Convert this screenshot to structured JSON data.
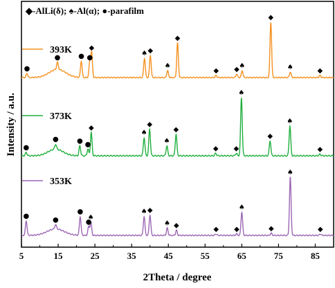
{
  "chart_data": {
    "type": "line",
    "title": "",
    "xlabel": "2Theta / degree",
    "ylabel": "Intensity / a.u.",
    "xlim": [
      5,
      90
    ],
    "xticks": [
      5,
      15,
      25,
      35,
      45,
      55,
      65,
      75,
      85
    ],
    "legend": {
      "position": "top",
      "items": [
        {
          "symbol": "◆",
          "text": "-AlLi(δ);"
        },
        {
          "symbol": "♠",
          "text": "-Al(α);"
        },
        {
          "symbol": "●",
          "text": "-parafilm"
        }
      ]
    },
    "series": [
      {
        "name": "393K",
        "color": "#f5901e",
        "baseline": 6.2,
        "broad": [
          {
            "x": 14.8,
            "h": 0.6,
            "w": 2.2
          }
        ],
        "peaks": [
          {
            "x": 6.5,
            "h": 0.3,
            "marker": "●"
          },
          {
            "x": 14.8,
            "h": 0.5,
            "marker": "●"
          },
          {
            "x": 21.3,
            "h": 1.2,
            "marker": "●"
          },
          {
            "x": 23.6,
            "h": 1.1,
            "marker": "●"
          },
          {
            "x": 24.1,
            "h": 1.8,
            "marker": "◆"
          },
          {
            "x": 38.5,
            "h": 1.4,
            "marker": "♠"
          },
          {
            "x": 40.1,
            "h": 1.6,
            "marker": "◆"
          },
          {
            "x": 44.8,
            "h": 0.5,
            "marker": "♠"
          },
          {
            "x": 47.5,
            "h": 2.5,
            "marker": "◆"
          },
          {
            "x": 58.0,
            "h": 0.15,
            "marker": "◆"
          },
          {
            "x": 63.6,
            "h": 0.25,
            "marker": "◆"
          },
          {
            "x": 65.1,
            "h": 0.5,
            "marker": "♠"
          },
          {
            "x": 72.9,
            "h": 4.0,
            "marker": "◆"
          },
          {
            "x": 78.2,
            "h": 0.4,
            "marker": "♠"
          },
          {
            "x": 86.3,
            "h": 0.15,
            "marker": "◆"
          }
        ]
      },
      {
        "name": "373K",
        "color": "#1fae3c",
        "baseline": 3.1,
        "broad": [
          {
            "x": 14.3,
            "h": 0.4,
            "w": 2.0
          }
        ],
        "peaks": [
          {
            "x": 6.3,
            "h": 0.2,
            "marker": "●"
          },
          {
            "x": 14.3,
            "h": 0.3,
            "marker": "●"
          },
          {
            "x": 20.9,
            "h": 0.6,
            "marker": "●"
          },
          {
            "x": 23.1,
            "h": 0.4,
            "marker": "●"
          },
          {
            "x": 24.0,
            "h": 1.4,
            "marker": "◆"
          },
          {
            "x": 38.4,
            "h": 1.1,
            "marker": "♠"
          },
          {
            "x": 39.9,
            "h": 1.6,
            "marker": "◆"
          },
          {
            "x": 44.6,
            "h": 0.6,
            "marker": "♠"
          },
          {
            "x": 47.1,
            "h": 1.3,
            "marker": "◆"
          },
          {
            "x": 57.9,
            "h": 0.15,
            "marker": "◆"
          },
          {
            "x": 63.5,
            "h": 0.15,
            "marker": "◆"
          },
          {
            "x": 64.9,
            "h": 3.5,
            "marker": "♠"
          },
          {
            "x": 72.7,
            "h": 0.9,
            "marker": "◆"
          },
          {
            "x": 78.1,
            "h": 1.8,
            "marker": "♠"
          },
          {
            "x": 86.3,
            "h": 0.1,
            "marker": "◆"
          }
        ]
      },
      {
        "name": "353K",
        "color": "#9b66b4",
        "baseline": 0,
        "broad": [
          {
            "x": 14.3,
            "h": 0.45,
            "w": 2.3
          }
        ],
        "peaks": [
          {
            "x": 6.3,
            "h": 1.0,
            "marker": "●"
          },
          {
            "x": 14.3,
            "h": 0.3,
            "marker": "●"
          },
          {
            "x": 21.0,
            "h": 1.3,
            "marker": "●"
          },
          {
            "x": 23.3,
            "h": 0.6,
            "marker": "●"
          },
          {
            "x": 23.9,
            "h": 0.9,
            "marker": "♠"
          },
          {
            "x": 38.4,
            "h": 1.3,
            "marker": "♠"
          },
          {
            "x": 40.0,
            "h": 1.4,
            "marker": "◆"
          },
          {
            "x": 44.7,
            "h": 0.5,
            "marker": "♠"
          },
          {
            "x": 47.2,
            "h": 0.35,
            "marker": "◆"
          },
          {
            "x": 58.0,
            "h": 0.1,
            "marker": "◆"
          },
          {
            "x": 63.6,
            "h": 0.1,
            "marker": "◆"
          },
          {
            "x": 65.0,
            "h": 1.6,
            "marker": "♠"
          },
          {
            "x": 73.0,
            "h": 0.15,
            "marker": "◆"
          },
          {
            "x": 78.2,
            "h": 4.0,
            "marker": "♠"
          },
          {
            "x": 86.4,
            "h": 0.1,
            "marker": "◆"
          }
        ]
      }
    ]
  }
}
